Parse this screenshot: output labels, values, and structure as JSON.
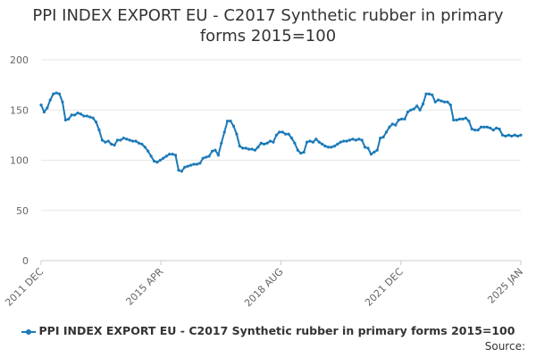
{
  "chart_data": {
    "type": "line",
    "title": "PPI INDEX EXPORT EU - C2017 Synthetic rubber in primary forms 2015=100",
    "title_lines": [
      "PPI INDEX EXPORT EU - C2017 Synthetic rubber in primary",
      "forms 2015=100"
    ],
    "ylim": [
      0,
      200
    ],
    "y_ticks": [
      0,
      50,
      100,
      150,
      200
    ],
    "x_ticks": [
      "2011 DEC",
      "2015 APR",
      "2018 AUG",
      "2021 DEC",
      "2025 JAN"
    ],
    "x_range": [
      "2011-12",
      "2025-01"
    ],
    "grid": true,
    "legend_position": "bottom",
    "series": [
      {
        "name": "PPI INDEX EXPORT EU - C2017 Synthetic rubber in primary forms 2015=100",
        "color": "#1c7ab8",
        "points": [
          [
            "2011-12",
            155
          ],
          [
            "2012-01",
            148
          ],
          [
            "2012-02",
            152
          ],
          [
            "2012-03",
            160
          ],
          [
            "2012-04",
            166
          ],
          [
            "2012-05",
            167
          ],
          [
            "2012-06",
            166
          ],
          [
            "2012-07",
            158
          ],
          [
            "2012-08",
            140
          ],
          [
            "2012-09",
            141
          ],
          [
            "2012-10",
            145
          ],
          [
            "2012-11",
            145
          ],
          [
            "2012-12",
            147
          ],
          [
            "2013-01",
            146
          ],
          [
            "2013-02",
            144
          ],
          [
            "2013-03",
            144
          ],
          [
            "2013-04",
            143
          ],
          [
            "2013-05",
            142
          ],
          [
            "2013-06",
            138
          ],
          [
            "2013-07",
            130
          ],
          [
            "2013-08",
            120
          ],
          [
            "2013-09",
            118
          ],
          [
            "2013-10",
            119
          ],
          [
            "2013-11",
            116
          ],
          [
            "2013-12",
            115
          ],
          [
            "2014-01",
            120
          ],
          [
            "2014-02",
            120
          ],
          [
            "2014-03",
            122
          ],
          [
            "2014-04",
            121
          ],
          [
            "2014-05",
            120
          ],
          [
            "2014-06",
            119
          ],
          [
            "2014-07",
            119
          ],
          [
            "2014-08",
            117
          ],
          [
            "2014-09",
            116
          ],
          [
            "2014-10",
            113
          ],
          [
            "2014-11",
            109
          ],
          [
            "2014-12",
            104
          ],
          [
            "2015-01",
            99
          ],
          [
            "2015-02",
            98
          ],
          [
            "2015-03",
            100
          ],
          [
            "2015-04",
            102
          ],
          [
            "2015-05",
            104
          ],
          [
            "2015-06",
            106
          ],
          [
            "2015-07",
            106
          ],
          [
            "2015-08",
            105
          ],
          [
            "2015-09",
            90
          ],
          [
            "2015-10",
            89
          ],
          [
            "2015-11",
            93
          ],
          [
            "2015-12",
            94
          ],
          [
            "2016-01",
            95
          ],
          [
            "2016-02",
            96
          ],
          [
            "2016-03",
            96
          ],
          [
            "2016-04",
            97
          ],
          [
            "2016-05",
            102
          ],
          [
            "2016-06",
            103
          ],
          [
            "2016-07",
            104
          ],
          [
            "2016-08",
            109
          ],
          [
            "2016-09",
            110
          ],
          [
            "2016-10",
            105
          ],
          [
            "2016-11",
            117
          ],
          [
            "2016-12",
            128
          ],
          [
            "2017-01",
            139
          ],
          [
            "2017-02",
            139
          ],
          [
            "2017-03",
            134
          ],
          [
            "2017-04",
            126
          ],
          [
            "2017-05",
            114
          ],
          [
            "2017-06",
            112
          ],
          [
            "2017-07",
            112
          ],
          [
            "2017-08",
            111
          ],
          [
            "2017-09",
            111
          ],
          [
            "2017-10",
            110
          ],
          [
            "2017-11",
            113
          ],
          [
            "2017-12",
            117
          ],
          [
            "2018-01",
            116
          ],
          [
            "2018-02",
            117
          ],
          [
            "2018-03",
            119
          ],
          [
            "2018-04",
            118
          ],
          [
            "2018-05",
            125
          ],
          [
            "2018-06",
            128
          ],
          [
            "2018-07",
            128
          ],
          [
            "2018-08",
            126
          ],
          [
            "2018-09",
            126
          ],
          [
            "2018-10",
            122
          ],
          [
            "2018-11",
            117
          ],
          [
            "2018-12",
            110
          ],
          [
            "2019-01",
            107
          ],
          [
            "2019-02",
            108
          ],
          [
            "2019-03",
            118
          ],
          [
            "2019-04",
            119
          ],
          [
            "2019-05",
            118
          ],
          [
            "2019-06",
            121
          ],
          [
            "2019-07",
            118
          ],
          [
            "2019-08",
            116
          ],
          [
            "2019-09",
            114
          ],
          [
            "2019-10",
            113
          ],
          [
            "2019-11",
            113
          ],
          [
            "2019-12",
            114
          ],
          [
            "2020-01",
            116
          ],
          [
            "2020-02",
            118
          ],
          [
            "2020-03",
            119
          ],
          [
            "2020-04",
            119
          ],
          [
            "2020-05",
            120
          ],
          [
            "2020-06",
            121
          ],
          [
            "2020-07",
            120
          ],
          [
            "2020-08",
            121
          ],
          [
            "2020-09",
            120
          ],
          [
            "2020-10",
            113
          ],
          [
            "2020-11",
            112
          ],
          [
            "2020-12",
            106
          ],
          [
            "2021-01",
            108
          ],
          [
            "2021-02",
            110
          ],
          [
            "2021-03",
            122
          ],
          [
            "2021-04",
            123
          ],
          [
            "2021-05",
            128
          ],
          [
            "2021-06",
            133
          ],
          [
            "2021-07",
            136
          ],
          [
            "2021-08",
            135
          ],
          [
            "2021-09",
            140
          ],
          [
            "2021-10",
            141
          ],
          [
            "2021-11",
            141
          ],
          [
            "2021-12",
            148
          ],
          [
            "2022-01",
            150
          ],
          [
            "2022-02",
            151
          ],
          [
            "2022-03",
            154
          ],
          [
            "2022-04",
            150
          ],
          [
            "2022-05",
            156
          ],
          [
            "2022-06",
            166
          ],
          [
            "2022-07",
            166
          ],
          [
            "2022-08",
            165
          ],
          [
            "2022-09",
            158
          ],
          [
            "2022-10",
            160
          ],
          [
            "2022-11",
            159
          ],
          [
            "2022-12",
            158
          ],
          [
            "2023-01",
            158
          ],
          [
            "2023-02",
            155
          ],
          [
            "2023-03",
            140
          ],
          [
            "2023-04",
            140
          ],
          [
            "2023-05",
            141
          ],
          [
            "2023-06",
            141
          ],
          [
            "2023-07",
            142
          ],
          [
            "2023-08",
            139
          ],
          [
            "2023-09",
            131
          ],
          [
            "2023-10",
            130
          ],
          [
            "2023-11",
            130
          ],
          [
            "2023-12",
            133
          ],
          [
            "2024-01",
            133
          ],
          [
            "2024-02",
            133
          ],
          [
            "2024-03",
            132
          ],
          [
            "2024-04",
            130
          ],
          [
            "2024-05",
            132
          ],
          [
            "2024-06",
            131
          ],
          [
            "2024-07",
            125
          ],
          [
            "2024-08",
            124
          ],
          [
            "2024-09",
            125
          ],
          [
            "2024-10",
            124
          ],
          [
            "2024-11",
            125
          ],
          [
            "2024-12",
            124
          ],
          [
            "2025-01",
            125
          ]
        ]
      }
    ]
  },
  "legend": {
    "label": "PPI INDEX EXPORT EU - C2017 Synthetic rubber in primary forms 2015=100"
  },
  "source": {
    "label": "Source:"
  }
}
